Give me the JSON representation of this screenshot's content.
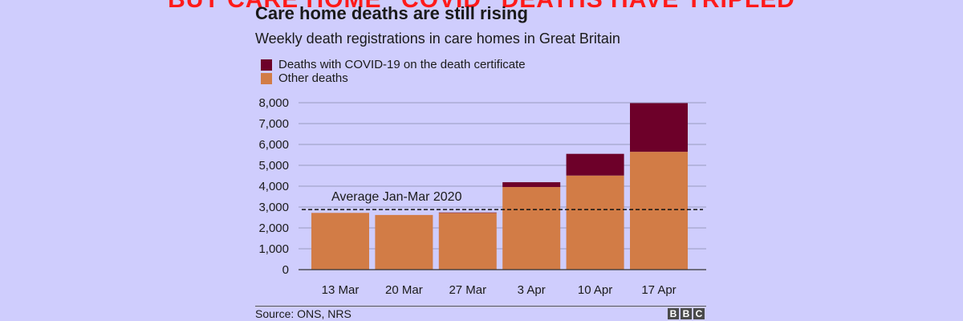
{
  "banner": {
    "text": "BUT CARE HOME \"COVID\" DEATHS HAVE TRIPLED"
  },
  "chart_data": {
    "type": "bar",
    "stacked": true,
    "title": "Care home deaths are still rising",
    "subtitle": "Weekly death registrations in care homes in Great Britain",
    "categories": [
      "13 Mar",
      "20 Mar",
      "27 Mar",
      "3 Apr",
      "10 Apr",
      "17 Apr"
    ],
    "series": [
      {
        "name": "Other deaths",
        "color": "#d27c46",
        "values": [
          2720,
          2620,
          2720,
          3960,
          4510,
          5650
        ]
      },
      {
        "name": "Deaths with COVID-19 on the death certificate",
        "color": "#6d0029",
        "values": [
          0,
          0,
          20,
          230,
          1040,
          2330
        ]
      }
    ],
    "yticks": [
      "0",
      "1,000",
      "2,000",
      "3,000",
      "4,000",
      "5,000",
      "6,000",
      "7,000",
      "8,000"
    ],
    "ylim": [
      0,
      8000
    ],
    "grid": true,
    "legend_position": "top-left",
    "annotation": {
      "text": "Average Jan-Mar 2020",
      "value": 2880
    }
  },
  "footer": {
    "source": "Source: ONS, NRS",
    "logo_letters": [
      "B",
      "B",
      "C"
    ]
  }
}
